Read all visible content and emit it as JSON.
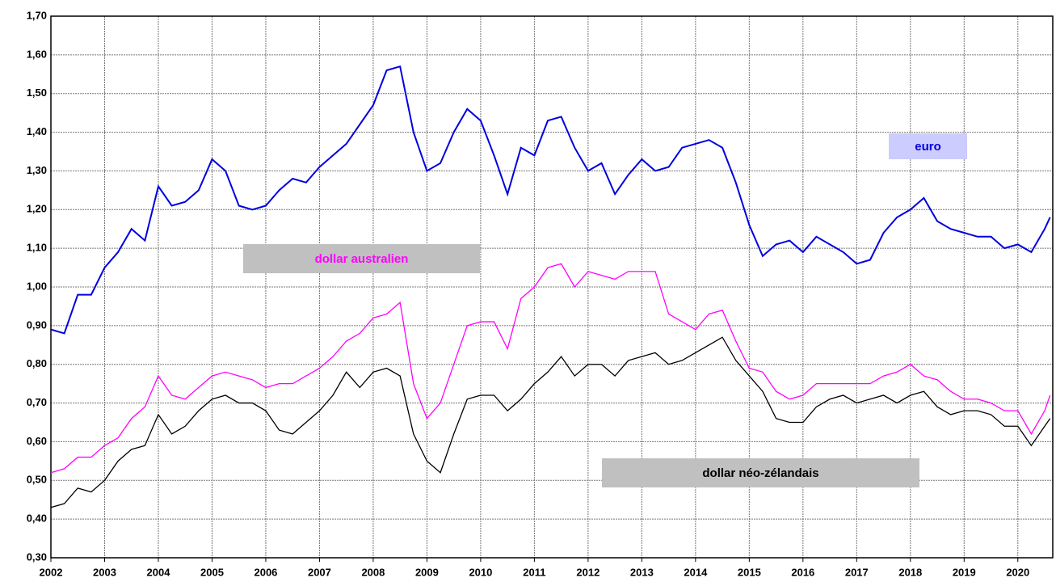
{
  "chart_data": {
    "type": "line",
    "x": [
      2002,
      2002.25,
      2002.5,
      2002.75,
      2003,
      2003.25,
      2003.5,
      2003.75,
      2004,
      2004.25,
      2004.5,
      2004.75,
      2005,
      2005.25,
      2005.5,
      2005.75,
      2006,
      2006.25,
      2006.5,
      2006.75,
      2007,
      2007.25,
      2007.5,
      2007.75,
      2008,
      2008.25,
      2008.5,
      2008.75,
      2009,
      2009.25,
      2009.5,
      2009.75,
      2010,
      2010.25,
      2010.5,
      2010.75,
      2011,
      2011.25,
      2011.5,
      2011.75,
      2012,
      2012.25,
      2012.5,
      2012.75,
      2013,
      2013.25,
      2013.5,
      2013.75,
      2014,
      2014.25,
      2014.5,
      2014.75,
      2015,
      2015.25,
      2015.5,
      2015.75,
      2016,
      2016.25,
      2016.5,
      2016.75,
      2017,
      2017.25,
      2017.5,
      2017.75,
      2018,
      2018.25,
      2018.5,
      2018.75,
      2019,
      2019.25,
      2019.5,
      2019.75,
      2020,
      2020.25,
      2020.5,
      2020.6
    ],
    "series": [
      {
        "name": "euro",
        "color": "#0000e0",
        "values": [
          0.89,
          0.88,
          0.98,
          0.98,
          1.05,
          1.09,
          1.15,
          1.12,
          1.26,
          1.21,
          1.22,
          1.25,
          1.33,
          1.3,
          1.21,
          1.2,
          1.21,
          1.25,
          1.28,
          1.27,
          1.31,
          1.34,
          1.37,
          1.42,
          1.47,
          1.56,
          1.57,
          1.4,
          1.3,
          1.32,
          1.4,
          1.46,
          1.43,
          1.34,
          1.24,
          1.36,
          1.34,
          1.43,
          1.44,
          1.36,
          1.3,
          1.32,
          1.24,
          1.29,
          1.33,
          1.3,
          1.31,
          1.36,
          1.37,
          1.38,
          1.36,
          1.27,
          1.16,
          1.08,
          1.11,
          1.12,
          1.09,
          1.13,
          1.11,
          1.09,
          1.06,
          1.07,
          1.14,
          1.18,
          1.2,
          1.23,
          1.17,
          1.15,
          1.14,
          1.13,
          1.13,
          1.1,
          1.11,
          1.09,
          1.15,
          1.18
        ]
      },
      {
        "name": "dollar australien",
        "color": "#ff00ff",
        "values": [
          0.52,
          0.53,
          0.56,
          0.56,
          0.59,
          0.61,
          0.66,
          0.69,
          0.77,
          0.72,
          0.71,
          0.74,
          0.77,
          0.78,
          0.77,
          0.76,
          0.74,
          0.75,
          0.75,
          0.77,
          0.79,
          0.82,
          0.86,
          0.88,
          0.92,
          0.93,
          0.96,
          0.75,
          0.66,
          0.7,
          0.8,
          0.9,
          0.91,
          0.91,
          0.84,
          0.97,
          1.0,
          1.05,
          1.06,
          1.0,
          1.04,
          1.03,
          1.02,
          1.04,
          1.04,
          1.04,
          0.93,
          0.91,
          0.89,
          0.93,
          0.94,
          0.86,
          0.79,
          0.78,
          0.73,
          0.71,
          0.72,
          0.75,
          0.75,
          0.75,
          0.75,
          0.75,
          0.77,
          0.78,
          0.8,
          0.77,
          0.76,
          0.73,
          0.71,
          0.71,
          0.7,
          0.68,
          0.68,
          0.62,
          0.68,
          0.72
        ]
      },
      {
        "name": "dollar néo-zélandais",
        "color": "#000000",
        "values": [
          0.43,
          0.44,
          0.48,
          0.47,
          0.5,
          0.55,
          0.58,
          0.59,
          0.67,
          0.62,
          0.64,
          0.68,
          0.71,
          0.72,
          0.7,
          0.7,
          0.68,
          0.63,
          0.62,
          0.65,
          0.68,
          0.72,
          0.78,
          0.74,
          0.78,
          0.79,
          0.77,
          0.62,
          0.55,
          0.52,
          0.62,
          0.71,
          0.72,
          0.72,
          0.68,
          0.71,
          0.75,
          0.78,
          0.82,
          0.77,
          0.8,
          0.8,
          0.77,
          0.81,
          0.82,
          0.83,
          0.8,
          0.81,
          0.83,
          0.85,
          0.87,
          0.81,
          0.77,
          0.73,
          0.66,
          0.65,
          0.65,
          0.69,
          0.71,
          0.72,
          0.7,
          0.71,
          0.72,
          0.7,
          0.72,
          0.73,
          0.69,
          0.67,
          0.68,
          0.68,
          0.67,
          0.64,
          0.64,
          0.59,
          0.64,
          0.66
        ]
      }
    ],
    "xlim": [
      2002,
      2020.65
    ],
    "xticks": [
      2002,
      2003,
      2004,
      2005,
      2006,
      2007,
      2008,
      2009,
      2010,
      2011,
      2012,
      2013,
      2014,
      2015,
      2016,
      2017,
      2018,
      2019,
      2020
    ],
    "ylim": [
      0.3,
      1.7
    ],
    "yticks": [
      {
        "value": 0.3,
        "label": "0,30"
      },
      {
        "value": 0.4,
        "label": "0,40"
      },
      {
        "value": 0.5,
        "label": "0,50"
      },
      {
        "value": 0.6,
        "label": "0,60"
      },
      {
        "value": 0.7,
        "label": "0,70"
      },
      {
        "value": 0.8,
        "label": "0,80"
      },
      {
        "value": 0.9,
        "label": "0,90"
      },
      {
        "value": 1.0,
        "label": "1,00"
      },
      {
        "value": 1.1,
        "label": "1,10"
      },
      {
        "value": 1.2,
        "label": "1,20"
      },
      {
        "value": 1.3,
        "label": "1,30"
      },
      {
        "value": 1.4,
        "label": "1,40"
      },
      {
        "value": 1.5,
        "label": "1,50"
      },
      {
        "value": 1.6,
        "label": "1,60"
      },
      {
        "value": 1.7,
        "label": "1,70"
      }
    ],
    "grid": true
  }
}
